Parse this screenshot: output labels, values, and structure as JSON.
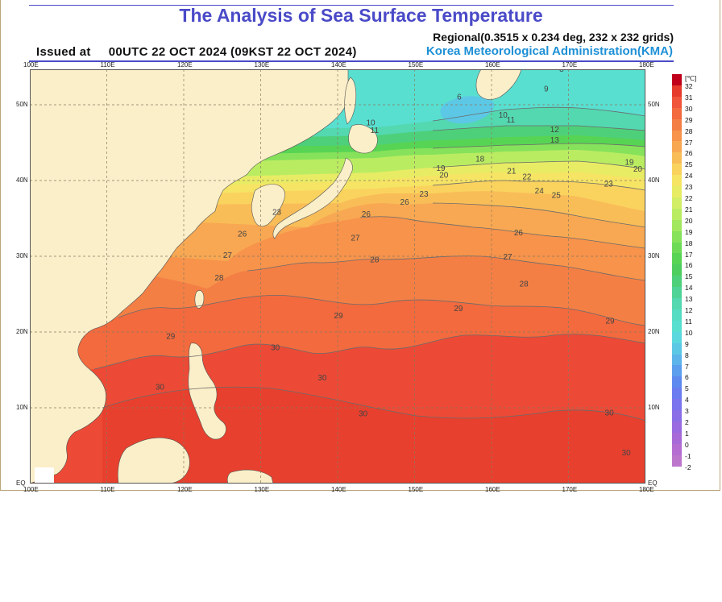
{
  "header": {
    "title": "The Analysis of Sea Surface Temperature",
    "issued_label": "Issued at",
    "issued_time": "00UTC 22 OCT 2024 (09KST 22 OCT 2024)",
    "regional": "Regional(0.3515 x 0.234 deg, 232 x 232 grids)",
    "agency": "Korea Meteorological Administration(KMA)"
  },
  "map": {
    "lon_labels": [
      "100E",
      "110E",
      "120E",
      "130E",
      "140E",
      "150E",
      "160E",
      "170E",
      "180E"
    ],
    "lat_labels": [
      "EQ",
      "10N",
      "20N",
      "30N",
      "40N",
      "50N"
    ],
    "contour_labels": [
      "32",
      "31",
      "30",
      "29",
      "28",
      "27",
      "26",
      "25",
      "24",
      "23",
      "22",
      "21",
      "20",
      "19",
      "18",
      "17",
      "16",
      "15",
      "14",
      "13",
      "12",
      "11",
      "10",
      "9",
      "8",
      "7",
      "6",
      "5"
    ],
    "shown_contours": [
      {
        "t": "8",
        "lon": 169.1,
        "lat": 54.4
      },
      {
        "t": "9",
        "lon": 167.1,
        "lat": 51.8
      },
      {
        "t": "6",
        "lon": 155.8,
        "lat": 50.7
      },
      {
        "t": "10",
        "lon": 161.5,
        "lat": 48.3
      },
      {
        "t": "11",
        "lon": 162.5,
        "lat": 47.7
      },
      {
        "t": "12",
        "lon": 168.2,
        "lat": 46.4
      },
      {
        "t": "13",
        "lon": 168.2,
        "lat": 45.0
      },
      {
        "t": "10",
        "lon": 144.3,
        "lat": 47.3
      },
      {
        "t": "11",
        "lon": 144.8,
        "lat": 46.3
      },
      {
        "t": "18",
        "lon": 158.5,
        "lat": 42.5
      },
      {
        "t": "19",
        "lon": 153.4,
        "lat": 41.3
      },
      {
        "t": "20",
        "lon": 153.8,
        "lat": 40.4
      },
      {
        "t": "21",
        "lon": 162.6,
        "lat": 40.9
      },
      {
        "t": "22",
        "lon": 164.6,
        "lat": 40.2
      },
      {
        "t": "19",
        "lon": 177.9,
        "lat": 42.1
      },
      {
        "t": "20",
        "lon": 179.0,
        "lat": 41.2
      },
      {
        "t": "23",
        "lon": 175.2,
        "lat": 39.2
      },
      {
        "t": "24",
        "lon": 166.2,
        "lat": 38.3
      },
      {
        "t": "25",
        "lon": 168.4,
        "lat": 37.7
      },
      {
        "t": "23",
        "lon": 151.2,
        "lat": 37.9
      },
      {
        "t": "26",
        "lon": 148.7,
        "lat": 36.8
      },
      {
        "t": "26",
        "lon": 143.7,
        "lat": 35.2
      },
      {
        "t": "23",
        "lon": 132.1,
        "lat": 35.5
      },
      {
        "t": "26",
        "lon": 127.6,
        "lat": 32.6
      },
      {
        "t": "27",
        "lon": 142.3,
        "lat": 32.1
      },
      {
        "t": "26",
        "lon": 163.5,
        "lat": 32.8
      },
      {
        "t": "27",
        "lon": 162.1,
        "lat": 29.6
      },
      {
        "t": "28",
        "lon": 144.8,
        "lat": 29.2
      },
      {
        "t": "28",
        "lon": 164.2,
        "lat": 26.0
      },
      {
        "t": "27",
        "lon": 125.7,
        "lat": 29.8
      },
      {
        "t": "28",
        "lon": 124.6,
        "lat": 26.8
      },
      {
        "t": "29",
        "lon": 140.1,
        "lat": 21.8
      },
      {
        "t": "29",
        "lon": 155.7,
        "lat": 22.8
      },
      {
        "t": "29",
        "lon": 175.4,
        "lat": 21.1
      },
      {
        "t": "29",
        "lon": 118.3,
        "lat": 19.1
      },
      {
        "t": "30",
        "lon": 131.9,
        "lat": 17.6
      },
      {
        "t": "30",
        "lon": 138.0,
        "lat": 13.6
      },
      {
        "t": "30",
        "lon": 116.9,
        "lat": 12.4
      },
      {
        "t": "30",
        "lon": 143.3,
        "lat": 8.9
      },
      {
        "t": "30",
        "lon": 175.3,
        "lat": 9.0
      },
      {
        "t": "30",
        "lon": 177.5,
        "lat": 3.7
      }
    ]
  },
  "legend": {
    "unit": "[℃]",
    "entries": [
      {
        "v": "32",
        "c": "#c0001a"
      },
      {
        "v": "31",
        "c": "#e63a2c"
      },
      {
        "v": "30",
        "c": "#f0543a"
      },
      {
        "v": "29",
        "c": "#f26a3e"
      },
      {
        "v": "28",
        "c": "#f47f45"
      },
      {
        "v": "27",
        "c": "#f7934b"
      },
      {
        "v": "26",
        "c": "#f8a852"
      },
      {
        "v": "25",
        "c": "#f9bd58"
      },
      {
        "v": "24",
        "c": "#fad35e"
      },
      {
        "v": "23",
        "c": "#f6e465"
      },
      {
        "v": "22",
        "c": "#e8ec65"
      },
      {
        "v": "21",
        "c": "#d2ee66"
      },
      {
        "v": "20",
        "c": "#baec62"
      },
      {
        "v": "19",
        "c": "#a1e85e"
      },
      {
        "v": "18",
        "c": "#86e25a"
      },
      {
        "v": "17",
        "c": "#6ddb56"
      },
      {
        "v": "16",
        "c": "#58d454"
      },
      {
        "v": "15",
        "c": "#4fce60"
      },
      {
        "v": "14",
        "c": "#4ed07a"
      },
      {
        "v": "13",
        "c": "#4fd396"
      },
      {
        "v": "12",
        "c": "#53d8b0"
      },
      {
        "v": "11",
        "c": "#57dcc4"
      },
      {
        "v": "10",
        "c": "#58dfd0"
      },
      {
        "v": "9",
        "c": "#5ad8de"
      },
      {
        "v": "8",
        "c": "#5cc8e6"
      },
      {
        "v": "7",
        "c": "#5cb4ea"
      },
      {
        "v": "6",
        "c": "#5c9eee"
      },
      {
        "v": "5",
        "c": "#5e8af0"
      },
      {
        "v": "4",
        "c": "#6a7cf0"
      },
      {
        "v": "3",
        "c": "#7a74ee"
      },
      {
        "v": "2",
        "c": "#8a6ee8"
      },
      {
        "v": "1",
        "c": "#9a6ae0"
      },
      {
        "v": "0",
        "c": "#a86ad8"
      },
      {
        "v": "-1",
        "c": "#b46ed2"
      },
      {
        "v": "-2",
        "c": "#bc76cc"
      }
    ]
  },
  "colors": {
    "land": "#fbefc9",
    "grid": "#8a7a60",
    "contour": "#6b6b6b",
    "title": "#4a4ac8",
    "agency": "#1e90d6"
  }
}
